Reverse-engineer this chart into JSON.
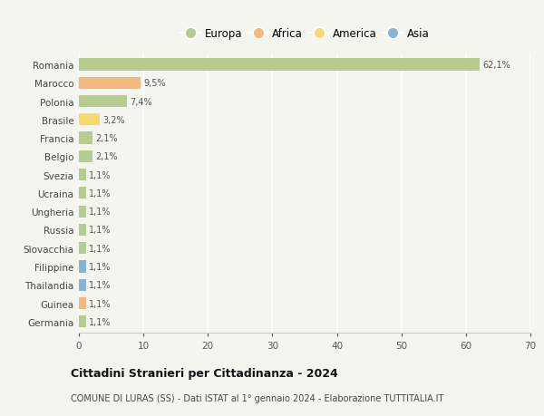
{
  "countries": [
    "Romania",
    "Marocco",
    "Polonia",
    "Brasile",
    "Francia",
    "Belgio",
    "Svezia",
    "Ucraina",
    "Ungheria",
    "Russia",
    "Slovacchia",
    "Filippine",
    "Thailandia",
    "Guinea",
    "Germania"
  ],
  "values": [
    62.1,
    9.5,
    7.4,
    3.2,
    2.1,
    2.1,
    1.1,
    1.1,
    1.1,
    1.1,
    1.1,
    1.1,
    1.1,
    1.1,
    1.1
  ],
  "labels": [
    "62,1%",
    "9,5%",
    "7,4%",
    "3,2%",
    "2,1%",
    "2,1%",
    "1,1%",
    "1,1%",
    "1,1%",
    "1,1%",
    "1,1%",
    "1,1%",
    "1,1%",
    "1,1%",
    "1,1%"
  ],
  "continents": [
    "Europa",
    "Africa",
    "Europa",
    "America",
    "Europa",
    "Europa",
    "Europa",
    "Europa",
    "Europa",
    "Europa",
    "Europa",
    "Asia",
    "Asia",
    "Africa",
    "Europa"
  ],
  "colors": {
    "Europa": "#b5cc8e",
    "Africa": "#f4b97e",
    "America": "#f9d96b",
    "Asia": "#85b4d4"
  },
  "legend_order": [
    "Europa",
    "Africa",
    "America",
    "Asia"
  ],
  "title": "Cittadini Stranieri per Cittadinanza - 2024",
  "subtitle": "COMUNE DI LURAS (SS) - Dati ISTAT al 1° gennaio 2024 - Elaborazione TUTTITALIA.IT",
  "xlim": [
    0,
    70
  ],
  "xticks": [
    0,
    10,
    20,
    30,
    40,
    50,
    60,
    70
  ],
  "background_color": "#f5f5f0",
  "grid_color": "#ffffff",
  "bar_height": 0.65
}
